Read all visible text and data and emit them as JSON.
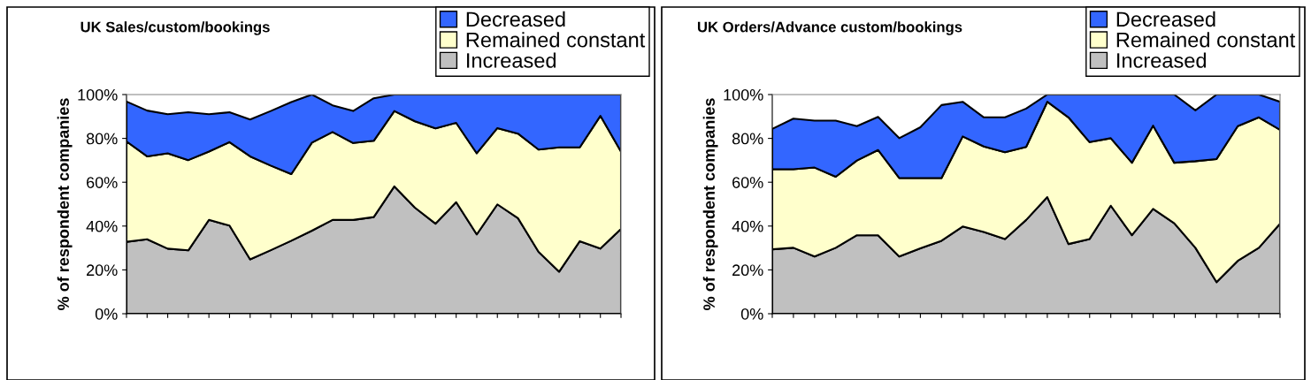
{
  "chart_data": [
    {
      "type": "area",
      "stacked": true,
      "title": "UK Sales/custom/bookings",
      "ylabel": "% of respondent companies",
      "legend": "top right",
      "grid": false,
      "categories": [
        null,
        null,
        null,
        null,
        null,
        null,
        null,
        null,
        null,
        null,
        null,
        null,
        null,
        null,
        null,
        null,
        null,
        null,
        null,
        null,
        null,
        null,
        null,
        null,
        null
      ],
      "ylim": [
        0,
        100
      ],
      "yticks": [
        {
          "value": 0,
          "label": "0%"
        },
        {
          "value": 20,
          "label": "20%"
        },
        {
          "value": 40,
          "label": "40%"
        },
        {
          "value": 60,
          "label": "60%"
        },
        {
          "value": 80,
          "label": "80%"
        },
        {
          "value": 100,
          "label": "100%"
        }
      ],
      "series": [
        {
          "name": "Increased",
          "color": "#c0c0c0",
          "values": [
            32.8,
            34,
            29.7,
            28.9,
            42.8,
            40.2,
            24.8,
            29,
            33.3,
            37.9,
            42.8,
            42.8,
            44.1,
            58.1,
            48.4,
            41.1,
            50.9,
            36.2,
            49.9,
            43.6,
            28.2,
            19.2,
            33.1,
            29.7,
            38.7
          ]
        },
        {
          "name": "Remained constant",
          "color": "#ffffcc",
          "values": [
            45.8,
            37.8,
            43.5,
            41.2,
            31.2,
            38.1,
            47.0,
            38.6,
            30.4,
            40.2,
            40.1,
            35.1,
            34.8,
            34.4,
            39.4,
            43.5,
            36.2,
            37.0,
            34.8,
            38.6,
            46.7,
            56.7,
            42.8,
            60.6,
            35.3
          ]
        },
        {
          "name": "Decreased",
          "color": "#3366ff",
          "values": [
            18.2,
            20.9,
            17.8,
            21.8,
            17.0,
            13.6,
            16.8,
            24.9,
            32.9,
            21.9,
            12.2,
            14.6,
            19.4,
            7.5,
            12.2,
            15.4,
            12.9,
            26.8,
            15.3,
            17.8,
            25.1,
            24.1,
            24.1,
            9.7,
            26.0
          ]
        }
      ]
    },
    {
      "type": "area",
      "stacked": true,
      "title": "UK Orders/Advance custom/bookings",
      "ylabel": "% of respondent companies",
      "legend": "top right",
      "grid": false,
      "categories": [
        null,
        null,
        null,
        null,
        null,
        null,
        null,
        null,
        null,
        null,
        null,
        null,
        null,
        null,
        null,
        null,
        null,
        null,
        null,
        null,
        null,
        null,
        null,
        null,
        null
      ],
      "ylim": [
        0,
        100
      ],
      "yticks": [
        {
          "value": 0,
          "label": "0%"
        },
        {
          "value": 20,
          "label": "20%"
        },
        {
          "value": 40,
          "label": "40%"
        },
        {
          "value": 60,
          "label": "60%"
        },
        {
          "value": 80,
          "label": "80%"
        },
        {
          "value": 100,
          "label": "100%"
        }
      ],
      "series": [
        {
          "name": "Increased",
          "color": "#c0c0c0",
          "values": [
            29.4,
            30.1,
            26.1,
            30.1,
            35.8,
            35.8,
            26.1,
            29.8,
            33.3,
            39.8,
            37.3,
            34.1,
            42.8,
            53.2,
            31.8,
            34.1,
            49.3,
            35.8,
            47.8,
            41.3,
            30.1,
            14.4,
            24.1,
            30.1,
            41.1
          ]
        },
        {
          "name": "Remained constant",
          "color": "#ffffcc",
          "values": [
            36.5,
            35.8,
            40.6,
            32.4,
            34.1,
            38.9,
            35.8,
            32.1,
            28.6,
            41.1,
            39.0,
            39.6,
            33.3,
            43.5,
            57.8,
            44.2,
            30.8,
            33.1,
            38.0,
            27.6,
            39.5,
            56.2,
            61.5,
            59.5,
            42.8
          ]
        },
        {
          "name": "Decreased",
          "color": "#3366ff",
          "values": [
            18.4,
            23.1,
            21.4,
            25.6,
            15.7,
            15.1,
            18.2,
            23.2,
            33.3,
            15.8,
            13.3,
            15.9,
            17.5,
            3.3,
            10.4,
            21.7,
            19.9,
            31.1,
            14.2,
            31.1,
            23.2,
            29.4,
            14.4,
            10.4,
            12.8
          ]
        }
      ]
    }
  ]
}
